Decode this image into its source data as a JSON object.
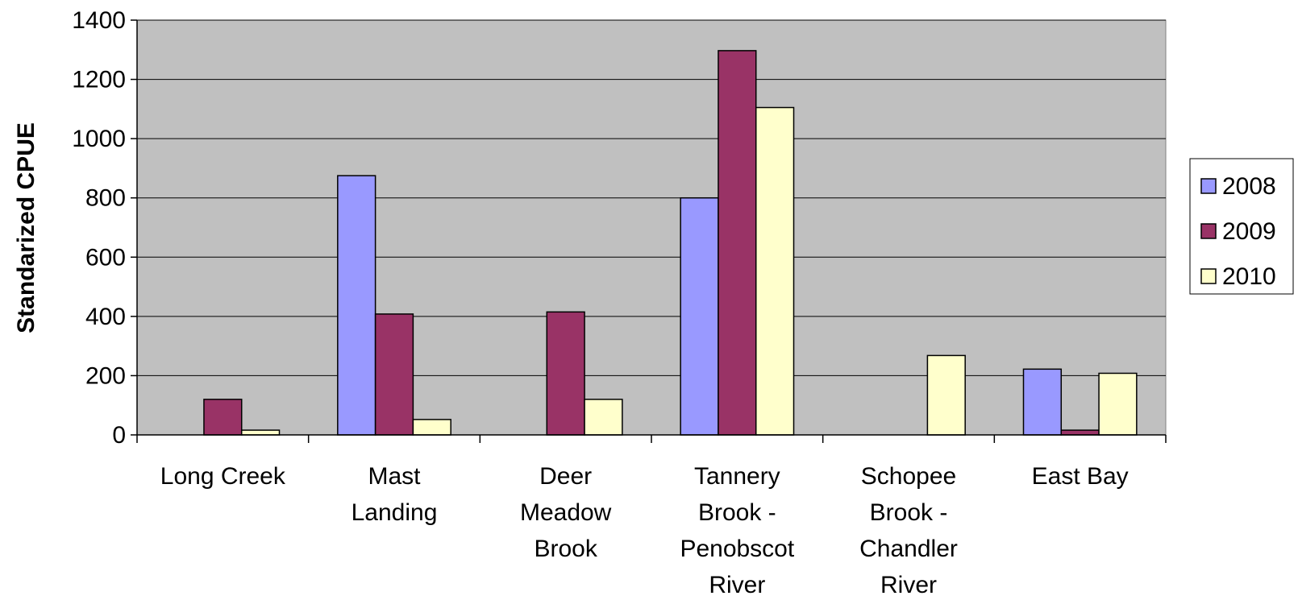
{
  "chart_data": {
    "type": "bar",
    "title": "",
    "xlabel": "",
    "ylabel": "Standarized CPUE",
    "ylim": [
      0,
      1400
    ],
    "yticks": [
      0,
      200,
      400,
      600,
      800,
      1000,
      1200,
      1400
    ],
    "grid": true,
    "legend_position": "right",
    "categories": [
      [
        "Long Creek"
      ],
      [
        "Mast",
        "Landing"
      ],
      [
        "Deer",
        "Meadow",
        "Brook"
      ],
      [
        "Tannery",
        "Brook -",
        "Penobscot",
        "River"
      ],
      [
        "Schopee",
        "Brook -",
        "Chandler",
        "River"
      ],
      [
        "East Bay"
      ]
    ],
    "series": [
      {
        "name": "2008",
        "color": "#9999ff",
        "values": [
          0,
          875,
          0,
          800,
          0,
          222
        ]
      },
      {
        "name": "2009",
        "color": "#993366",
        "values": [
          120,
          408,
          415,
          1297,
          0,
          16
        ]
      },
      {
        "name": "2010",
        "color": "#ffffcc",
        "values": [
          16,
          52,
          120,
          1105,
          268,
          208
        ]
      }
    ],
    "plot_background": "#c0c0c0"
  }
}
